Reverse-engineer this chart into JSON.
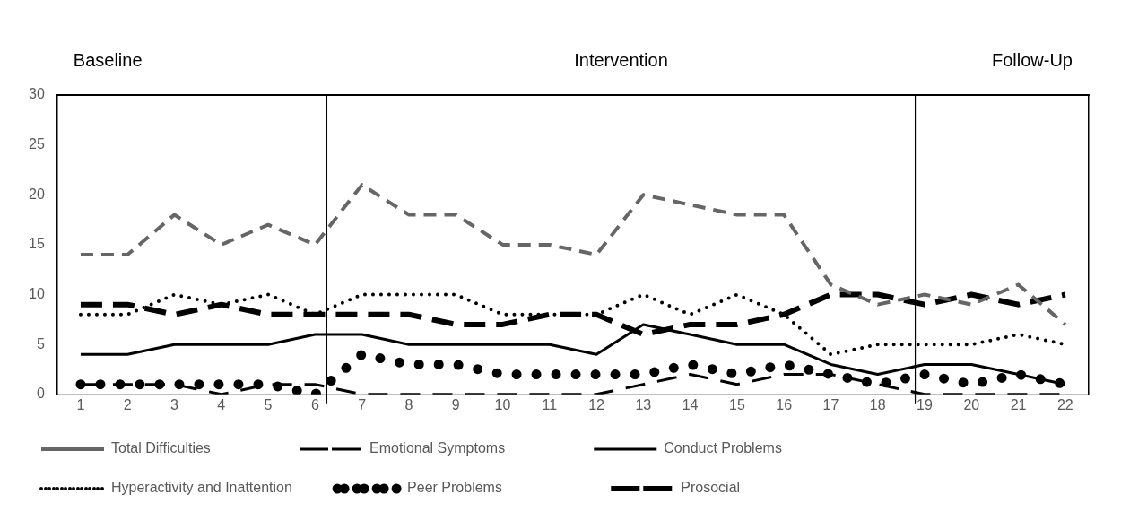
{
  "chart_data": {
    "type": "line",
    "x": [
      1,
      2,
      3,
      4,
      5,
      6,
      7,
      8,
      9,
      10,
      11,
      12,
      13,
      14,
      15,
      16,
      17,
      18,
      19,
      20,
      21,
      22
    ],
    "xlim": [
      0.5,
      22.5
    ],
    "xticks": [
      1,
      2,
      3,
      4,
      5,
      6,
      7,
      8,
      9,
      10,
      11,
      12,
      13,
      14,
      15,
      16,
      17,
      18,
      19,
      20,
      21,
      22
    ],
    "ylim": [
      0,
      30
    ],
    "yticks": [
      0,
      5,
      10,
      15,
      20,
      25,
      30
    ],
    "grid": false,
    "legend": "bottom",
    "marker": "none",
    "series": [
      {
        "name": "Total Difficulties",
        "color": "#666666",
        "line_style": "dashed",
        "values": [
          14,
          14,
          18,
          15,
          17,
          15,
          21,
          18,
          18,
          15,
          15,
          14,
          20,
          19,
          18,
          18,
          11,
          9,
          10,
          9,
          11,
          7
        ]
      },
      {
        "name": "Emotional Symptoms",
        "color": "#000000",
        "line_style": "dashed",
        "values": [
          1,
          1,
          1,
          0,
          1,
          1,
          0,
          0,
          0,
          0,
          0,
          0,
          1,
          2,
          1,
          2,
          2,
          1,
          0,
          0,
          0,
          0
        ]
      },
      {
        "name": "Conduct Problems",
        "color": "#000000",
        "line_style": "solid",
        "values": [
          4,
          4,
          5,
          5,
          5,
          6,
          6,
          5,
          5,
          5,
          5,
          4,
          7,
          6,
          5,
          5,
          3,
          2,
          3,
          3,
          2,
          1
        ]
      },
      {
        "name": "Hyperactivity and Inattention",
        "color": "#000000",
        "line_style": "dotted",
        "values": [
          8,
          8,
          10,
          9,
          10,
          8,
          10,
          10,
          10,
          8,
          8,
          8,
          10,
          8,
          10,
          8,
          4,
          5,
          5,
          5,
          6,
          5
        ]
      },
      {
        "name": "Peer Problems",
        "color": "#000000",
        "line_style": "dotted",
        "values": [
          1,
          1,
          1,
          1,
          1,
          0,
          4,
          3,
          3,
          2,
          2,
          2,
          2,
          3,
          2,
          3,
          2,
          1,
          2,
          1,
          2,
          1
        ]
      },
      {
        "name": "Prosocial",
        "color": "#000000",
        "line_style": "dashed",
        "values": [
          9,
          9,
          8,
          9,
          8,
          8,
          8,
          8,
          7,
          7,
          8,
          8,
          6,
          7,
          7,
          8,
          10,
          10,
          9,
          10,
          9,
          10
        ]
      }
    ],
    "ref_lines": [
      {
        "axis": "x",
        "value": 6.25,
        "color": "#000000"
      },
      {
        "axis": "x",
        "value": 18.8,
        "color": "#000000"
      }
    ],
    "annotations": [
      "Baseline",
      "Intervention",
      "Follow-Up"
    ]
  }
}
